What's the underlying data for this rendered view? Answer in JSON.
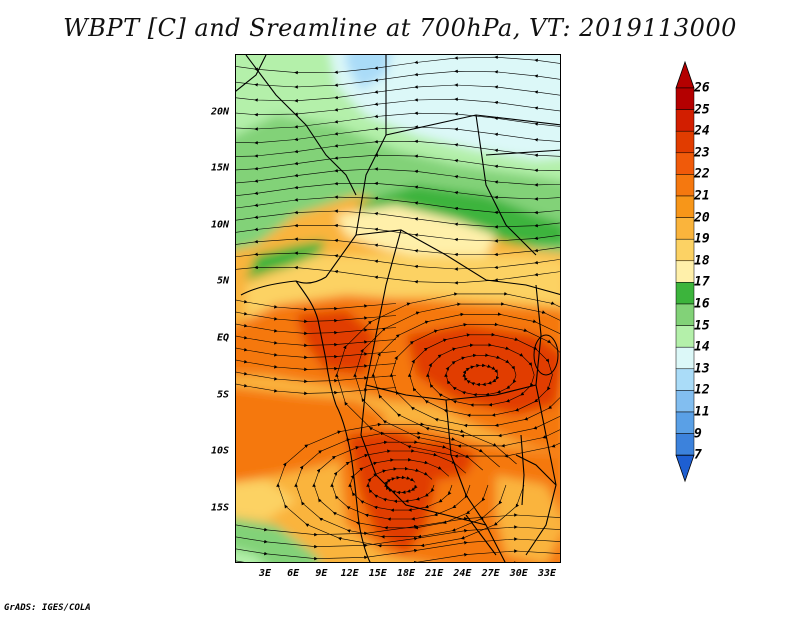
{
  "title": "WBPT [C] and Sreamline at 700hPa, VT: 2019113000",
  "credit": "GrADS: IGES/COLA",
  "y_axis_labels": [
    "20N",
    "15N",
    "10N",
    "5N",
    "EQ",
    "5S",
    "10S",
    "15S"
  ],
  "x_axis_labels": [
    "3E",
    "6E",
    "9E",
    "12E",
    "15E",
    "18E",
    "21E",
    "24E",
    "27E",
    "30E",
    "33E"
  ],
  "colorbar": {
    "labels": [
      "26",
      "25",
      "24",
      "23",
      "22",
      "21",
      "20",
      "19",
      "18",
      "17",
      "16",
      "15",
      "14",
      "13",
      "12",
      "11",
      "9",
      "7"
    ],
    "colors": [
      "#b40000",
      "#d21e00",
      "#e13c00",
      "#f05a0a",
      "#f5780f",
      "#f79619",
      "#fab43c",
      "#fcd264",
      "#fff0aa",
      "#3cb43c",
      "#82d278",
      "#b4f0aa",
      "#dcf8f8",
      "#aadcf8",
      "#82bef0",
      "#5aa0e6",
      "#3c82dc",
      "#1e5fd2"
    ]
  },
  "map_fields": {
    "zone_colors": {
      "green_dark": "#3cb43c",
      "green": "#82d278",
      "green_light": "#b4f0aa",
      "cyan": "#dcf8f8",
      "blue": "#aadcf8",
      "yellow_pale": "#fff0aa",
      "yellow": "#fcd264",
      "orange_light": "#fab43c",
      "orange": "#f5780f",
      "red_orange": "#e13c00"
    }
  }
}
